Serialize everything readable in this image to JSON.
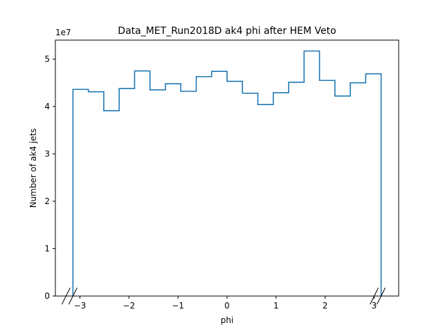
{
  "chart_data": {
    "type": "histogram",
    "title": "Data_MET_Run2018D ak4 phi after HEM Veto",
    "xlabel": "phi",
    "ylabel": "Number of ak4 jets",
    "y_scale_label": "1e7",
    "xlim": [
      -3.5,
      3.5
    ],
    "ylim": [
      0,
      54000000.0
    ],
    "xticks": [
      -3,
      -2,
      -1,
      0,
      1,
      2,
      3
    ],
    "xtick_labels": [
      "−3",
      "−2",
      "−1",
      "0",
      "1",
      "2",
      "3"
    ],
    "yticks": [
      0,
      10000000.0,
      20000000.0,
      30000000.0,
      40000000.0,
      50000000.0
    ],
    "ytick_labels": [
      "0",
      "1",
      "2",
      "3",
      "4",
      "5"
    ],
    "bin_edges": [
      -3.1416,
      -2.8274,
      -2.5133,
      -2.1991,
      -1.885,
      -1.5708,
      -1.2566,
      -0.9425,
      -0.6283,
      -0.3142,
      0,
      0.3142,
      0.6283,
      0.9425,
      1.2566,
      1.5708,
      1.885,
      2.1991,
      2.5133,
      2.8274,
      3.1416
    ],
    "values": [
      43600000,
      43100000,
      39100000,
      43800000,
      47500000,
      43500000,
      44800000,
      43200000,
      46300000,
      47400000,
      45300000,
      42800000,
      40400000,
      42900000,
      45100000,
      51700000,
      45500000,
      42200000,
      45000000,
      46900000
    ],
    "color": "#1f77b4",
    "histtype": "step",
    "grid": false,
    "legend": "none",
    "broken_axis_marks": true
  }
}
